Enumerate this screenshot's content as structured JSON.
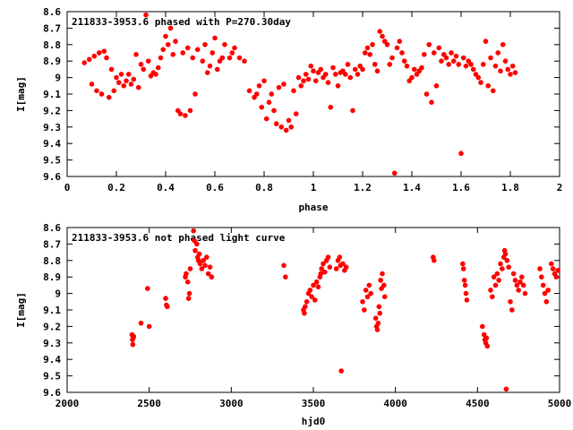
{
  "chart_data": [
    {
      "type": "scatter",
      "title": "211833-3953.6 phased with P=270.30day",
      "xlabel": "phase",
      "ylabel": "I[mag]",
      "xlim": [
        0,
        2
      ],
      "ylim": [
        9.6,
        8.6
      ],
      "y_inverted": true,
      "grid": false,
      "marker_color": "#ff0000",
      "xticks": [
        "0",
        "0.2",
        "0.4",
        "0.6",
        "0.8",
        "1",
        "1.2",
        "1.4",
        "1.6",
        "1.8",
        "2"
      ],
      "xtick_values": [
        0,
        0.2,
        0.4,
        0.6,
        0.8,
        1.0,
        1.2,
        1.4,
        1.6,
        1.8,
        2.0
      ],
      "yticks": [
        "8.6",
        "8.7",
        "8.8",
        "8.9",
        "9",
        "9.1",
        "9.2",
        "9.3",
        "9.4",
        "9.5",
        "9.6"
      ],
      "ytick_values": [
        8.6,
        8.7,
        8.8,
        8.9,
        9.0,
        9.1,
        9.2,
        9.3,
        9.4,
        9.5,
        9.6
      ],
      "points": [
        [
          0.07,
          8.91
        ],
        [
          0.09,
          8.89
        ],
        [
          0.1,
          9.04
        ],
        [
          0.11,
          8.87
        ],
        [
          0.12,
          9.08
        ],
        [
          0.13,
          8.85
        ],
        [
          0.14,
          9.1
        ],
        [
          0.15,
          8.84
        ],
        [
          0.16,
          8.88
        ],
        [
          0.17,
          9.12
        ],
        [
          0.18,
          8.95
        ],
        [
          0.19,
          9.08
        ],
        [
          0.2,
          9.0
        ],
        [
          0.21,
          9.03
        ],
        [
          0.22,
          8.98
        ],
        [
          0.23,
          9.05
        ],
        [
          0.24,
          9.02
        ],
        [
          0.25,
          8.98
        ],
        [
          0.26,
          9.04
        ],
        [
          0.27,
          9.01
        ],
        [
          0.28,
          8.86
        ],
        [
          0.29,
          9.06
        ],
        [
          0.3,
          8.92
        ],
        [
          0.31,
          8.95
        ],
        [
          0.32,
          8.62
        ],
        [
          0.33,
          8.9
        ],
        [
          0.34,
          8.99
        ],
        [
          0.35,
          8.97
        ],
        [
          0.36,
          8.98
        ],
        [
          0.37,
          8.94
        ],
        [
          0.38,
          8.88
        ],
        [
          0.39,
          8.83
        ],
        [
          0.4,
          8.75
        ],
        [
          0.41,
          8.8
        ],
        [
          0.42,
          8.7
        ],
        [
          0.43,
          8.86
        ],
        [
          0.44,
          8.78
        ],
        [
          0.45,
          9.2
        ],
        [
          0.46,
          9.22
        ],
        [
          0.47,
          8.85
        ],
        [
          0.48,
          9.23
        ],
        [
          0.49,
          8.82
        ],
        [
          0.5,
          9.2
        ],
        [
          0.51,
          8.88
        ],
        [
          0.52,
          9.1
        ],
        [
          0.53,
          8.83
        ],
        [
          0.55,
          8.9
        ],
        [
          0.56,
          8.8
        ],
        [
          0.57,
          8.97
        ],
        [
          0.58,
          8.93
        ],
        [
          0.59,
          8.85
        ],
        [
          0.6,
          8.76
        ],
        [
          0.61,
          8.95
        ],
        [
          0.62,
          8.9
        ],
        [
          0.63,
          8.88
        ],
        [
          0.64,
          8.8
        ],
        [
          0.66,
          8.88
        ],
        [
          0.67,
          8.85
        ],
        [
          0.68,
          8.82
        ],
        [
          0.7,
          8.88
        ],
        [
          0.72,
          8.9
        ],
        [
          0.74,
          9.08
        ],
        [
          0.76,
          9.12
        ],
        [
          0.77,
          9.1
        ],
        [
          0.78,
          9.05
        ],
        [
          0.79,
          9.18
        ],
        [
          0.8,
          9.02
        ],
        [
          0.81,
          9.25
        ],
        [
          0.82,
          9.15
        ],
        [
          0.83,
          9.1
        ],
        [
          0.84,
          9.2
        ],
        [
          0.85,
          9.28
        ],
        [
          0.86,
          9.06
        ],
        [
          0.87,
          9.3
        ],
        [
          0.88,
          9.04
        ],
        [
          0.89,
          9.32
        ],
        [
          0.9,
          9.26
        ],
        [
          0.91,
          9.3
        ],
        [
          0.92,
          9.08
        ],
        [
          0.93,
          9.22
        ],
        [
          0.94,
          9.0
        ],
        [
          0.95,
          9.05
        ],
        [
          0.96,
          9.02
        ],
        [
          0.97,
          8.98
        ],
        [
          0.98,
          9.01
        ],
        [
          0.99,
          8.93
        ],
        [
          1.0,
          8.96
        ],
        [
          1.01,
          9.02
        ],
        [
          1.02,
          8.97
        ],
        [
          1.03,
          8.95
        ],
        [
          1.04,
          9.0
        ],
        [
          1.05,
          8.98
        ],
        [
          1.06,
          9.03
        ],
        [
          1.07,
          9.18
        ],
        [
          1.08,
          8.94
        ],
        [
          1.09,
          8.98
        ],
        [
          1.1,
          9.05
        ],
        [
          1.11,
          8.97
        ],
        [
          1.12,
          8.96
        ],
        [
          1.13,
          8.98
        ],
        [
          1.14,
          8.92
        ],
        [
          1.15,
          9.0
        ],
        [
          1.16,
          9.2
        ],
        [
          1.17,
          8.95
        ],
        [
          1.18,
          8.98
        ],
        [
          1.19,
          8.93
        ],
        [
          1.2,
          8.95
        ],
        [
          1.21,
          8.85
        ],
        [
          1.22,
          8.82
        ],
        [
          1.23,
          8.86
        ],
        [
          1.24,
          8.8
        ],
        [
          1.25,
          8.92
        ],
        [
          1.26,
          8.96
        ],
        [
          1.27,
          8.72
        ],
        [
          1.28,
          8.75
        ],
        [
          1.29,
          8.78
        ],
        [
          1.3,
          8.8
        ],
        [
          1.31,
          8.92
        ],
        [
          1.32,
          8.88
        ],
        [
          1.33,
          9.58
        ],
        [
          1.34,
          8.82
        ],
        [
          1.35,
          8.78
        ],
        [
          1.36,
          8.85
        ],
        [
          1.37,
          8.9
        ],
        [
          1.38,
          8.93
        ],
        [
          1.39,
          9.02
        ],
        [
          1.4,
          9.0
        ],
        [
          1.41,
          8.95
        ],
        [
          1.42,
          8.98
        ],
        [
          1.43,
          8.96
        ],
        [
          1.44,
          8.94
        ],
        [
          1.45,
          8.86
        ],
        [
          1.46,
          9.1
        ],
        [
          1.47,
          8.8
        ],
        [
          1.48,
          9.15
        ],
        [
          1.49,
          8.85
        ],
        [
          1.5,
          9.05
        ],
        [
          1.51,
          8.82
        ],
        [
          1.52,
          8.9
        ],
        [
          1.53,
          8.86
        ],
        [
          1.54,
          8.88
        ],
        [
          1.55,
          8.92
        ],
        [
          1.56,
          8.85
        ],
        [
          1.57,
          8.9
        ],
        [
          1.58,
          8.87
        ],
        [
          1.59,
          8.92
        ],
        [
          1.6,
          9.46
        ],
        [
          1.61,
          8.88
        ],
        [
          1.62,
          8.93
        ],
        [
          1.63,
          8.9
        ],
        [
          1.64,
          8.92
        ],
        [
          1.65,
          8.95
        ],
        [
          1.66,
          8.98
        ],
        [
          1.67,
          9.0
        ],
        [
          1.68,
          9.03
        ],
        [
          1.69,
          8.92
        ],
        [
          1.7,
          8.78
        ],
        [
          1.71,
          9.05
        ],
        [
          1.72,
          8.88
        ],
        [
          1.73,
          9.08
        ],
        [
          1.74,
          8.93
        ],
        [
          1.75,
          8.85
        ],
        [
          1.76,
          8.96
        ],
        [
          1.77,
          8.8
        ],
        [
          1.78,
          8.9
        ],
        [
          1.79,
          8.95
        ],
        [
          1.8,
          8.98
        ],
        [
          1.81,
          8.93
        ],
        [
          1.82,
          8.97
        ]
      ]
    },
    {
      "type": "scatter",
      "title": "211833-3953.6 not phased light curve",
      "xlabel": "hjd0",
      "ylabel": "I[mag]",
      "xlim": [
        2000,
        5000
      ],
      "ylim": [
        9.6,
        8.6
      ],
      "y_inverted": true,
      "grid": false,
      "marker_color": "#ff0000",
      "xticks": [
        "2000",
        "2500",
        "3000",
        "3500",
        "4000",
        "4500",
        "5000"
      ],
      "xtick_values": [
        2000,
        2500,
        3000,
        3500,
        4000,
        4500,
        5000
      ],
      "yticks": [
        "8.6",
        "8.7",
        "8.8",
        "8.9",
        "9",
        "9.1",
        "9.2",
        "9.3",
        "9.4",
        "9.5",
        "9.6"
      ],
      "ytick_values": [
        8.6,
        8.7,
        8.8,
        8.9,
        9.0,
        9.1,
        9.2,
        9.3,
        9.4,
        9.5,
        9.6
      ],
      "points": [
        [
          2395,
          9.25
        ],
        [
          2398,
          9.28
        ],
        [
          2400,
          9.31
        ],
        [
          2402,
          9.27
        ],
        [
          2405,
          9.26
        ],
        [
          2450,
          9.18
        ],
        [
          2490,
          8.97
        ],
        [
          2500,
          9.2
        ],
        [
          2600,
          9.03
        ],
        [
          2605,
          9.07
        ],
        [
          2610,
          9.08
        ],
        [
          2720,
          8.9
        ],
        [
          2725,
          8.88
        ],
        [
          2735,
          8.93
        ],
        [
          2740,
          9.03
        ],
        [
          2745,
          9.0
        ],
        [
          2750,
          8.85
        ],
        [
          2770,
          8.62
        ],
        [
          2775,
          8.68
        ],
        [
          2780,
          8.74
        ],
        [
          2790,
          8.7
        ],
        [
          2795,
          8.78
        ],
        [
          2800,
          8.8
        ],
        [
          2805,
          8.76
        ],
        [
          2810,
          8.82
        ],
        [
          2820,
          8.85
        ],
        [
          2830,
          8.8
        ],
        [
          2840,
          8.83
        ],
        [
          2850,
          8.78
        ],
        [
          2860,
          8.88
        ],
        [
          2870,
          8.84
        ],
        [
          2880,
          8.9
        ],
        [
          3320,
          8.83
        ],
        [
          3330,
          8.9
        ],
        [
          3440,
          9.1
        ],
        [
          3445,
          9.12
        ],
        [
          3450,
          9.08
        ],
        [
          3460,
          9.05
        ],
        [
          3470,
          9.0
        ],
        [
          3480,
          8.98
        ],
        [
          3490,
          9.02
        ],
        [
          3500,
          8.95
        ],
        [
          3510,
          9.04
        ],
        [
          3520,
          8.93
        ],
        [
          3530,
          8.96
        ],
        [
          3540,
          8.9
        ],
        [
          3545,
          8.88
        ],
        [
          3550,
          8.85
        ],
        [
          3560,
          8.82
        ],
        [
          3570,
          8.87
        ],
        [
          3580,
          8.8
        ],
        [
          3590,
          8.78
        ],
        [
          3600,
          8.84
        ],
        [
          3640,
          8.85
        ],
        [
          3650,
          8.8
        ],
        [
          3660,
          8.78
        ],
        [
          3665,
          8.83
        ],
        [
          3670,
          9.47
        ],
        [
          3680,
          8.82
        ],
        [
          3690,
          8.86
        ],
        [
          3700,
          8.84
        ],
        [
          3800,
          9.05
        ],
        [
          3810,
          9.1
        ],
        [
          3820,
          8.98
        ],
        [
          3830,
          9.02
        ],
        [
          3840,
          8.95
        ],
        [
          3850,
          9.0
        ],
        [
          3880,
          9.15
        ],
        [
          3885,
          9.2
        ],
        [
          3890,
          9.22
        ],
        [
          3895,
          9.18
        ],
        [
          3900,
          9.08
        ],
        [
          3905,
          9.12
        ],
        [
          3910,
          8.92
        ],
        [
          3915,
          8.97
        ],
        [
          3920,
          8.88
        ],
        [
          3930,
          8.95
        ],
        [
          3935,
          9.02
        ],
        [
          4230,
          8.78
        ],
        [
          4235,
          8.8
        ],
        [
          4410,
          8.82
        ],
        [
          4415,
          8.85
        ],
        [
          4420,
          8.92
        ],
        [
          4425,
          8.95
        ],
        [
          4430,
          9.0
        ],
        [
          4435,
          9.04
        ],
        [
          4530,
          9.2
        ],
        [
          4540,
          9.25
        ],
        [
          4545,
          9.28
        ],
        [
          4550,
          9.3
        ],
        [
          4555,
          9.27
        ],
        [
          4560,
          9.32
        ],
        [
          4580,
          8.98
        ],
        [
          4590,
          9.02
        ],
        [
          4600,
          8.9
        ],
        [
          4610,
          8.95
        ],
        [
          4620,
          8.88
        ],
        [
          4630,
          8.92
        ],
        [
          4640,
          8.82
        ],
        [
          4650,
          8.85
        ],
        [
          4660,
          8.78
        ],
        [
          4665,
          8.74
        ],
        [
          4670,
          8.76
        ],
        [
          4675,
          9.58
        ],
        [
          4680,
          8.8
        ],
        [
          4690,
          8.84
        ],
        [
          4700,
          9.05
        ],
        [
          4710,
          9.1
        ],
        [
          4720,
          8.88
        ],
        [
          4730,
          8.92
        ],
        [
          4740,
          8.95
        ],
        [
          4750,
          8.98
        ],
        [
          4760,
          8.93
        ],
        [
          4770,
          8.9
        ],
        [
          4780,
          8.95
        ],
        [
          4790,
          9.0
        ],
        [
          4880,
          8.85
        ],
        [
          4890,
          8.9
        ],
        [
          4900,
          8.95
        ],
        [
          4910,
          9.0
        ],
        [
          4920,
          9.05
        ],
        [
          4930,
          8.98
        ],
        [
          4950,
          8.82
        ],
        [
          4960,
          8.85
        ],
        [
          4970,
          8.88
        ],
        [
          4980,
          8.9
        ],
        [
          4990,
          8.86
        ]
      ]
    }
  ]
}
